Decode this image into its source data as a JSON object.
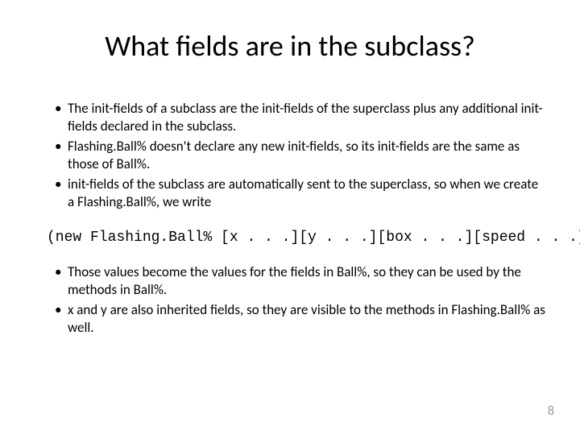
{
  "title": "What fields are in the subclass?",
  "bullets_top": [
    "The init-fields of a subclass are the init-fields of the superclass plus any additional init-fields declared in the subclass.",
    "Flashing.Ball% doesn't declare any new init-fields, so its init-fields are the same as those of Ball%.",
    "init-fields of the subclass are automatically sent to the superclass, so when we create a Flashing.Ball%, we write"
  ],
  "code_line": "(new Flashing.Ball% [x . . .][y . . .][box . . .][speed . . .])",
  "bullets_bottom": [
    "Those values become the values for the fields in Ball%, so they can be used by the methods in Ball%.",
    "x and y are also inherited fields, so they are visible to the methods in Flashing.Ball% as well."
  ],
  "page_number": "8",
  "colors": {
    "background": "#ffffff",
    "text": "#000000",
    "page_number": "#999999"
  },
  "fonts": {
    "title_size": 36,
    "body_size": 17,
    "code_size": 18,
    "page_num_size": 16
  }
}
